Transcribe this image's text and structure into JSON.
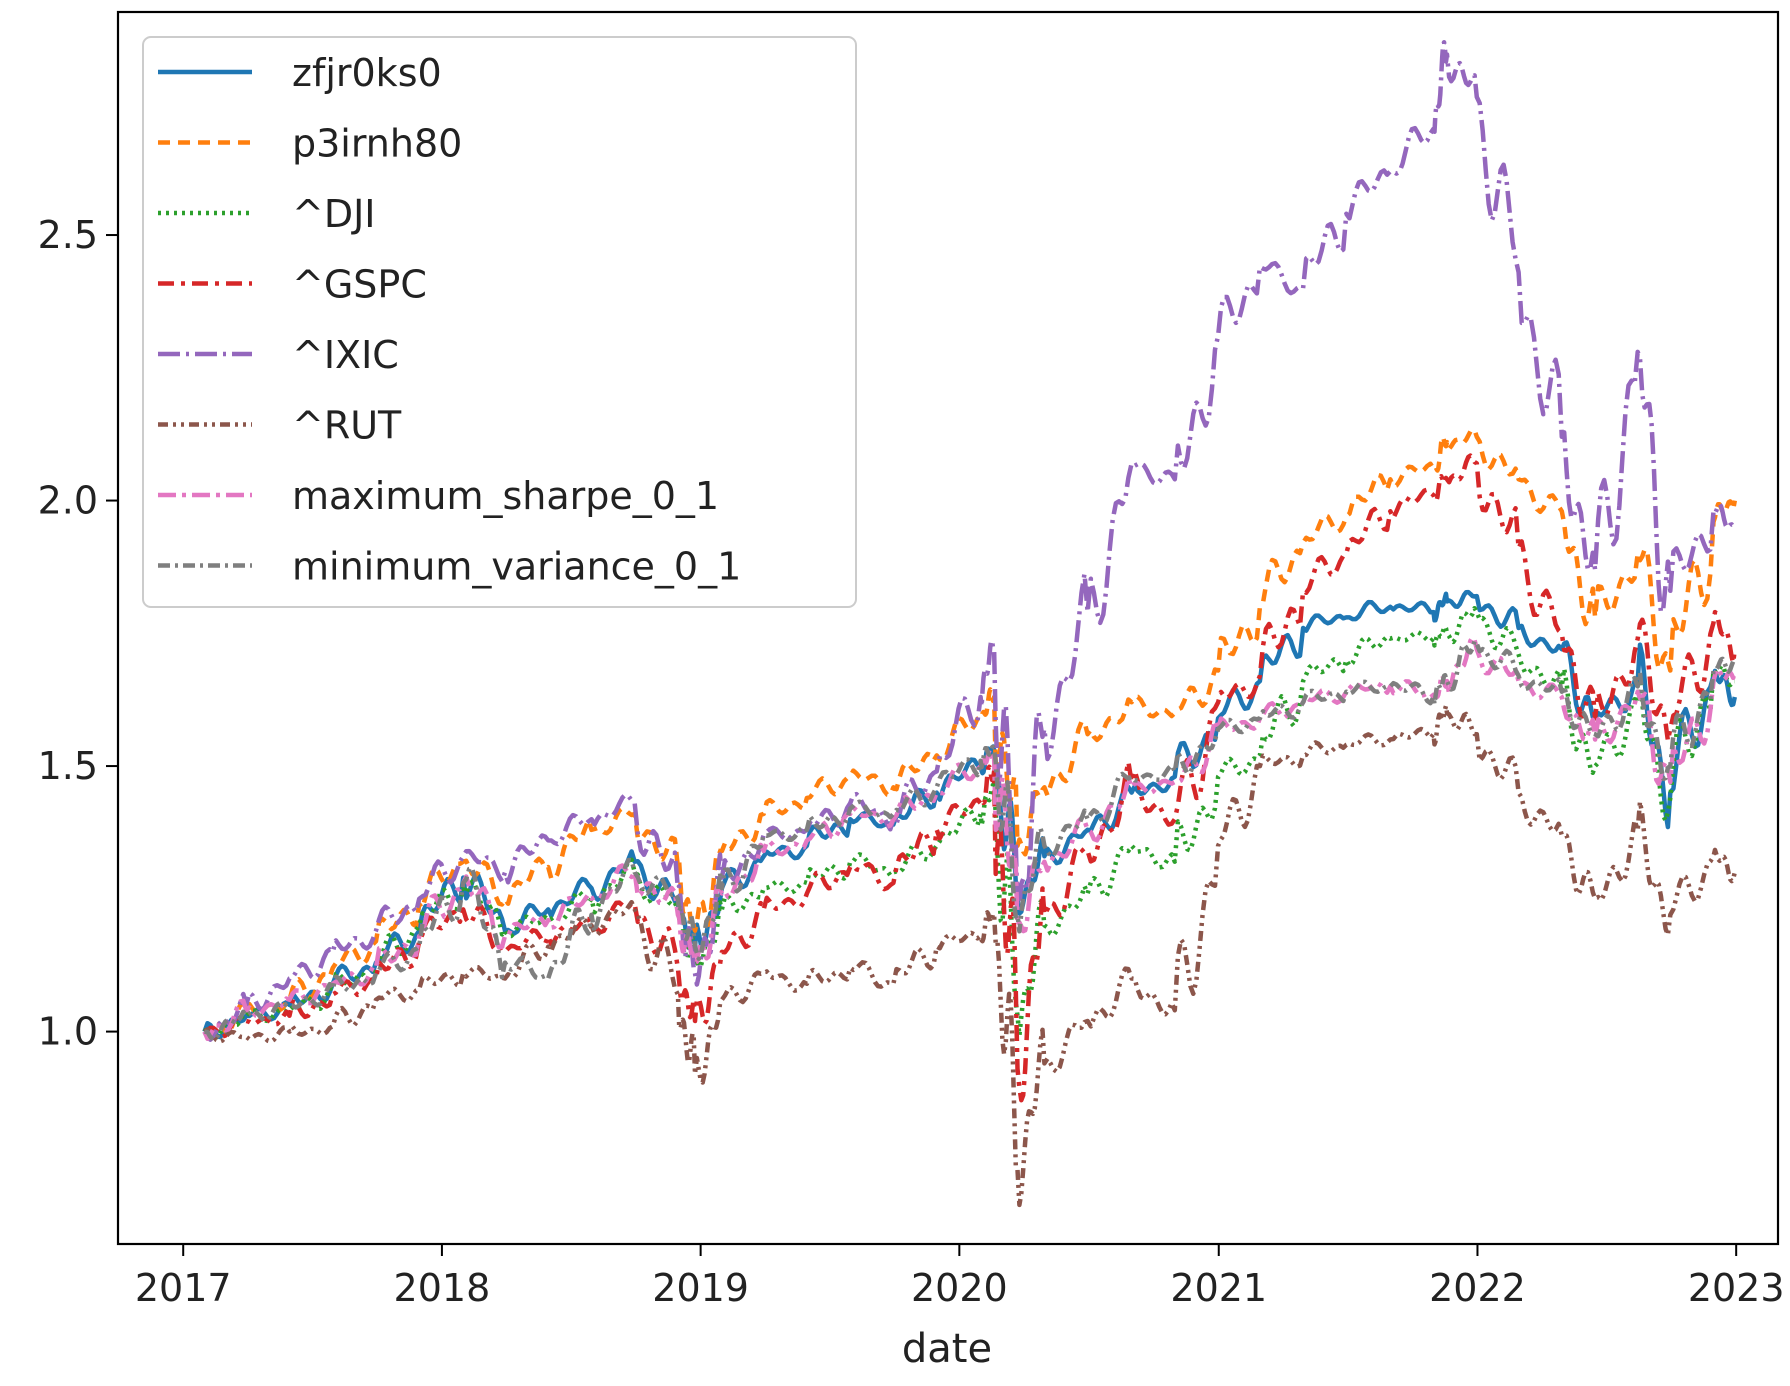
{
  "chart_data": {
    "type": "line",
    "xlabel": "date",
    "ylabel": "",
    "title": "",
    "x_ticks": [
      "2017",
      "2018",
      "2019",
      "2020",
      "2021",
      "2022",
      "2023"
    ],
    "y_ticks": [
      "1.0",
      "1.5",
      "2.0",
      "2.5"
    ],
    "xlim": [
      "2016-10-01",
      "2023-03-01"
    ],
    "ylim": [
      0.6,
      2.92
    ],
    "grid": false,
    "legend_position": "top-left",
    "x": [
      "2017-01-31",
      "2017-03-31",
      "2017-05-31",
      "2017-07-31",
      "2017-09-30",
      "2017-11-30",
      "2018-01-31",
      "2018-03-31",
      "2018-05-31",
      "2018-07-31",
      "2018-09-30",
      "2018-11-30",
      "2018-12-24",
      "2019-01-31",
      "2019-03-31",
      "2019-05-31",
      "2019-07-31",
      "2019-09-30",
      "2019-11-30",
      "2020-01-31",
      "2020-02-19",
      "2020-03-23",
      "2020-04-30",
      "2020-06-30",
      "2020-08-31",
      "2020-10-31",
      "2020-12-31",
      "2021-02-28",
      "2021-04-30",
      "2021-06-30",
      "2021-08-31",
      "2021-10-31",
      "2021-11-19",
      "2021-12-31",
      "2022-02-28",
      "2022-04-30",
      "2022-06-16",
      "2022-08-15",
      "2022-09-30",
      "2022-11-30",
      "2022-12-30"
    ],
    "series": [
      {
        "name": "zfjr0ks0",
        "color": "#1f77b4",
        "dash": "solid",
        "values": [
          1.0,
          1.03,
          1.05,
          1.09,
          1.13,
          1.19,
          1.29,
          1.19,
          1.23,
          1.27,
          1.32,
          1.24,
          1.16,
          1.27,
          1.33,
          1.35,
          1.4,
          1.39,
          1.45,
          1.5,
          1.53,
          1.25,
          1.33,
          1.38,
          1.45,
          1.48,
          1.59,
          1.66,
          1.76,
          1.78,
          1.8,
          1.79,
          1.81,
          1.82,
          1.76,
          1.72,
          1.59,
          1.66,
          1.45,
          1.67,
          1.63
        ]
      },
      {
        "name": "p3irnh80",
        "color": "#ff7f0e",
        "dash": "12 8",
        "values": [
          1.0,
          1.04,
          1.06,
          1.12,
          1.17,
          1.24,
          1.32,
          1.25,
          1.31,
          1.38,
          1.41,
          1.31,
          1.19,
          1.34,
          1.41,
          1.44,
          1.48,
          1.46,
          1.52,
          1.59,
          1.63,
          1.35,
          1.46,
          1.56,
          1.62,
          1.6,
          1.68,
          1.8,
          1.92,
          1.97,
          2.04,
          2.06,
          2.11,
          2.12,
          2.04,
          1.98,
          1.78,
          1.9,
          1.68,
          1.96,
          2.0
        ]
      },
      {
        "name": "^DJI",
        "color": "#2ca02c",
        "dash": "3 5",
        "values": [
          1.0,
          1.03,
          1.04,
          1.08,
          1.12,
          1.2,
          1.27,
          1.19,
          1.21,
          1.25,
          1.3,
          1.23,
          1.13,
          1.23,
          1.27,
          1.28,
          1.32,
          1.3,
          1.35,
          1.41,
          1.45,
          1.03,
          1.2,
          1.26,
          1.35,
          1.32,
          1.48,
          1.52,
          1.66,
          1.7,
          1.74,
          1.74,
          1.75,
          1.79,
          1.71,
          1.65,
          1.5,
          1.62,
          1.44,
          1.68,
          1.66
        ]
      },
      {
        "name": "^GSPC",
        "color": "#d62728",
        "dash": "16 7 4 7",
        "values": [
          1.0,
          1.02,
          1.03,
          1.07,
          1.1,
          1.17,
          1.23,
          1.15,
          1.18,
          1.2,
          1.24,
          1.12,
          1.02,
          1.15,
          1.23,
          1.26,
          1.31,
          1.28,
          1.38,
          1.43,
          1.49,
          0.93,
          1.22,
          1.34,
          1.47,
          1.4,
          1.62,
          1.67,
          1.83,
          1.9,
          1.98,
          2.01,
          2.04,
          2.07,
          1.91,
          1.75,
          1.59,
          1.74,
          1.57,
          1.77,
          1.72
        ]
      },
      {
        "name": "^IXIC",
        "color": "#9467bd",
        "dash": "22 6 3 6",
        "values": [
          1.0,
          1.05,
          1.1,
          1.15,
          1.19,
          1.25,
          1.33,
          1.3,
          1.36,
          1.4,
          1.43,
          1.27,
          1.11,
          1.29,
          1.37,
          1.38,
          1.43,
          1.4,
          1.49,
          1.63,
          1.72,
          1.23,
          1.57,
          1.79,
          2.07,
          2.04,
          2.31,
          2.44,
          2.4,
          2.54,
          2.62,
          2.7,
          2.84,
          2.76,
          2.43,
          2.12,
          1.87,
          2.28,
          1.83,
          1.98,
          1.95
        ]
      },
      {
        "name": "^RUT",
        "color": "#8c564b",
        "dash": "10 5 3 5 3 5",
        "values": [
          1.0,
          0.99,
          1.0,
          1.01,
          1.06,
          1.08,
          1.11,
          1.1,
          1.16,
          1.2,
          1.23,
          1.07,
          0.92,
          1.06,
          1.11,
          1.09,
          1.12,
          1.09,
          1.16,
          1.18,
          1.22,
          0.74,
          0.94,
          1.02,
          1.1,
          1.04,
          1.35,
          1.5,
          1.52,
          1.54,
          1.55,
          1.56,
          1.6,
          1.56,
          1.45,
          1.37,
          1.25,
          1.38,
          1.22,
          1.33,
          1.3
        ]
      },
      {
        "name": "maximum_sharpe_0_1",
        "color": "#e377c2",
        "dash": "18 6 4 6",
        "values": [
          1.0,
          1.04,
          1.06,
          1.09,
          1.12,
          1.18,
          1.28,
          1.18,
          1.21,
          1.25,
          1.3,
          1.22,
          1.13,
          1.26,
          1.34,
          1.36,
          1.41,
          1.4,
          1.45,
          1.5,
          1.52,
          1.2,
          1.32,
          1.38,
          1.46,
          1.47,
          1.57,
          1.59,
          1.62,
          1.64,
          1.65,
          1.63,
          1.66,
          1.72,
          1.66,
          1.63,
          1.55,
          1.64,
          1.47,
          1.66,
          1.68
        ]
      },
      {
        "name": "minimum_variance_0_1",
        "color": "#7f7f7f",
        "dash": "12 5 3 5",
        "values": [
          1.0,
          1.03,
          1.05,
          1.08,
          1.11,
          1.16,
          1.28,
          1.13,
          1.1,
          1.22,
          1.3,
          1.25,
          1.16,
          1.27,
          1.37,
          1.38,
          1.42,
          1.41,
          1.46,
          1.51,
          1.53,
          1.22,
          1.35,
          1.4,
          1.48,
          1.49,
          1.57,
          1.59,
          1.62,
          1.64,
          1.65,
          1.63,
          1.66,
          1.73,
          1.67,
          1.64,
          1.56,
          1.65,
          1.5,
          1.68,
          1.7
        ]
      }
    ]
  }
}
